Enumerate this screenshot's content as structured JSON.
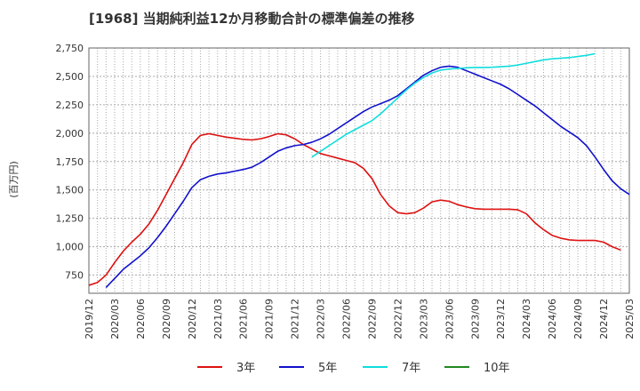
{
  "chart_data": {
    "type": "line",
    "title": "[1968]  当期純利益12か月移動合計の標準偏差の推移",
    "ylabel": "(百万円)",
    "xlabel": "",
    "ylim": [
      590,
      2750
    ],
    "yticks": [
      750,
      1000,
      1250,
      1500,
      1750,
      2000,
      2250,
      2500,
      2750
    ],
    "ytick_labels": [
      "750",
      "1,000",
      "1,250",
      "1,500",
      "1,750",
      "2,000",
      "2,250",
      "2,500",
      "2,750"
    ],
    "xlim": [
      "2019-12",
      "2025-03"
    ],
    "xticks": [
      "2019/12",
      "2020/03",
      "2020/06",
      "2020/09",
      "2020/12",
      "2021/03",
      "2021/06",
      "2021/09",
      "2021/12",
      "2022/03",
      "2022/06",
      "2022/09",
      "2022/12",
      "2023/03",
      "2023/06",
      "2023/09",
      "2023/12",
      "2024/03",
      "2024/06",
      "2024/09",
      "2024/12",
      "2025/03"
    ],
    "grid": true,
    "legend_position": "bottom",
    "series": [
      {
        "name": "3年",
        "color": "#dd1111",
        "start": "2019-12",
        "values": [
          660,
          685,
          750,
          860,
          960,
          1040,
          1110,
          1200,
          1320,
          1460,
          1600,
          1740,
          1900,
          1980,
          1995,
          1980,
          1965,
          1955,
          1945,
          1940,
          1950,
          1970,
          1995,
          1985,
          1950,
          1900,
          1860,
          1820,
          1800,
          1780,
          1760,
          1740,
          1690,
          1600,
          1460,
          1360,
          1300,
          1290,
          1300,
          1340,
          1395,
          1410,
          1400,
          1370,
          1350,
          1335,
          1330,
          1330,
          1330,
          1330,
          1325,
          1290,
          1210,
          1150,
          1100,
          1075,
          1060,
          1055,
          1055,
          1055,
          1040,
          1000,
          970
        ]
      },
      {
        "name": "5年",
        "color": "#1111cc",
        "start": "2020-02",
        "values": [
          640,
          720,
          800,
          860,
          920,
          990,
          1080,
          1180,
          1290,
          1400,
          1520,
          1590,
          1620,
          1640,
          1650,
          1665,
          1680,
          1700,
          1740,
          1790,
          1840,
          1870,
          1890,
          1900,
          1920,
          1950,
          1990,
          2040,
          2090,
          2140,
          2190,
          2230,
          2260,
          2290,
          2330,
          2390,
          2450,
          2510,
          2550,
          2580,
          2590,
          2580,
          2550,
          2520,
          2490,
          2460,
          2430,
          2390,
          2340,
          2290,
          2240,
          2180,
          2120,
          2060,
          2010,
          1960,
          1890,
          1790,
          1680,
          1580,
          1510,
          1460
        ]
      },
      {
        "name": "7年",
        "color": "#11dddd",
        "start": "2022-02",
        "values": [
          1790,
          1840,
          1890,
          1940,
          1990,
          2030,
          2070,
          2110,
          2170,
          2240,
          2310,
          2380,
          2440,
          2490,
          2530,
          2555,
          2565,
          2570,
          2575,
          2578,
          2578,
          2580,
          2585,
          2590,
          2600,
          2615,
          2630,
          2645,
          2655,
          2660,
          2665,
          2675,
          2685,
          2700
        ]
      },
      {
        "name": "10年",
        "color": "#228822",
        "start": "2019-12",
        "values": []
      }
    ]
  }
}
